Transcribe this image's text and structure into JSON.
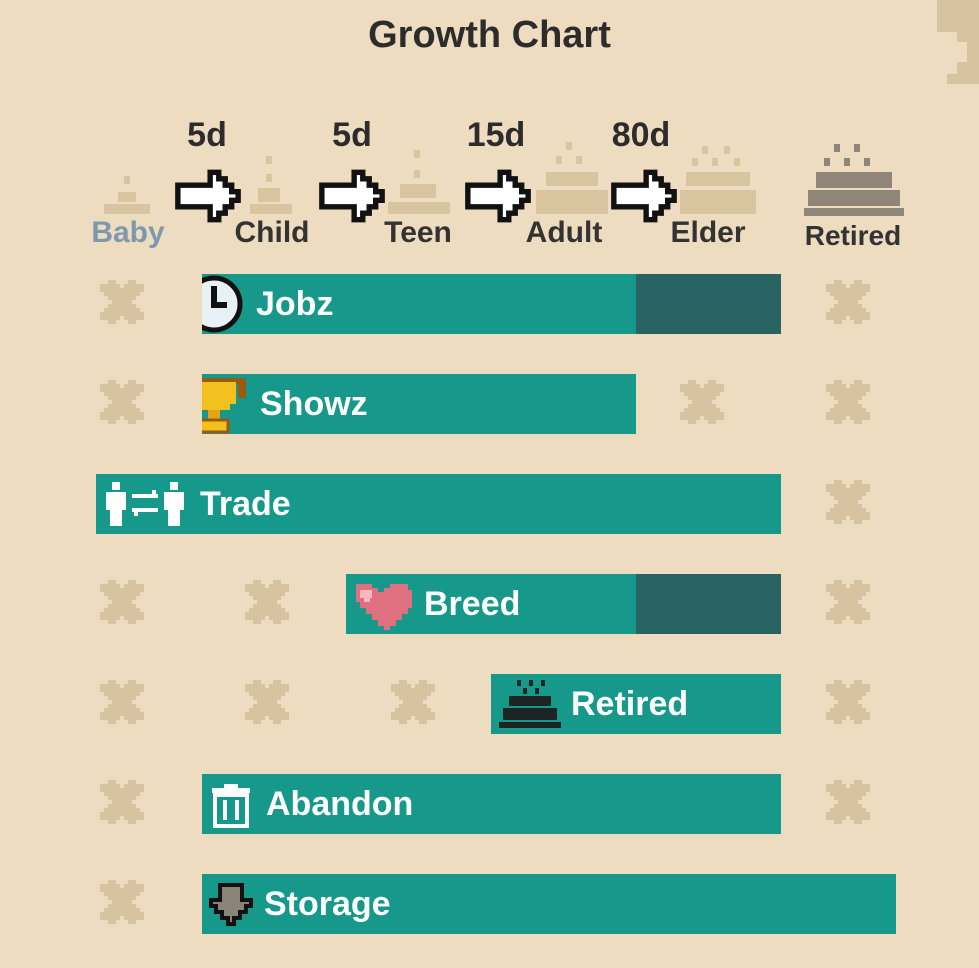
{
  "title": "Growth Chart",
  "stages": {
    "baby": "Baby",
    "child": "Child",
    "teen": "Teen",
    "adult": "Adult",
    "elder": "Elder",
    "retired": "Retired"
  },
  "durations": [
    "5d",
    "5d",
    "15d",
    "80d"
  ],
  "rows": {
    "jobz": "Jobz",
    "showz": "Showz",
    "trade": "Trade",
    "breed": "Breed",
    "retired": "Retired",
    "abandon": "Abandon",
    "storage": "Storage"
  },
  "icons": {
    "jobz": "clock-icon",
    "showz": "trophy-icon",
    "trade": "trade-icon",
    "breed": "heart-icon",
    "retired": "cake-icon",
    "abandon": "trash-icon",
    "storage": "down-arrow-icon",
    "not_available": "x-icon"
  },
  "colors": {
    "background": "#eddcbf",
    "bar": "#16988a",
    "bar_partial": "#286362",
    "cross": "#d8c3a0",
    "cake_light": "#d9c4a0",
    "cake_dark": "#8f8579"
  }
}
